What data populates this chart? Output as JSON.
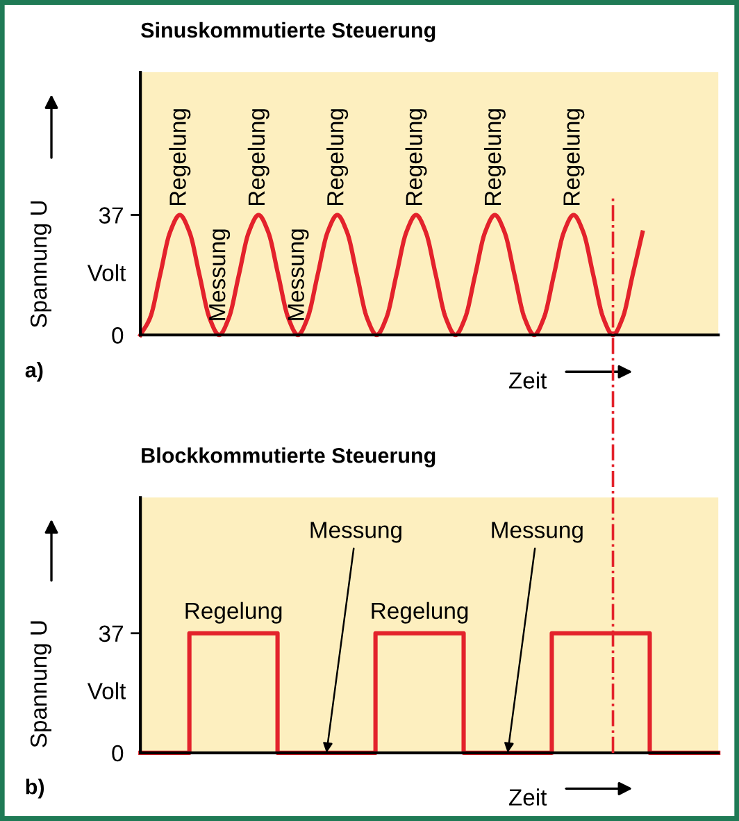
{
  "chart_data": [
    {
      "type": "line",
      "title": "Sinuskommutierte Steuerung",
      "xlabel": "Zeit",
      "ylabel": "Spannung U",
      "tick_labels": "y",
      "color": "#e3222b",
      "categories": [
        null,
        null,
        null,
        null,
        null,
        null,
        null,
        null,
        null,
        null,
        null,
        null,
        null,
        null,
        null,
        null,
        null,
        null,
        null,
        null,
        null,
        null,
        null,
        null,
        null,
        null,
        null,
        null,
        null,
        null,
        null,
        null,
        null,
        null,
        null,
        null,
        null,
        null,
        null,
        null,
        null,
        null,
        null,
        null,
        null,
        null,
        null,
        null,
        null,
        null,
        null,
        null
      ],
      "values": [
        0,
        5.4,
        18.5,
        31.6,
        37,
        31.6,
        18.5,
        5.4,
        0,
        5.4,
        18.5,
        31.6,
        37,
        31.6,
        18.5,
        5.4,
        0,
        5.4,
        18.5,
        31.6,
        37,
        31.6,
        18.5,
        5.4,
        0,
        5.4,
        18.5,
        31.6,
        37,
        31.6,
        18.5,
        5.4,
        0,
        5.4,
        18.5,
        31.6,
        37,
        31.6,
        18.5,
        5.4,
        0,
        5.4,
        18.5,
        31.6,
        37,
        31.6,
        18.5,
        5.4,
        0,
        5.4,
        18.5,
        31.6
      ],
      "ylim": [
        0,
        81
      ],
      "yticks": [
        0,
        37
      ],
      "annotations": [
        {
          "text": "Regelung",
          "y": 37
        },
        {
          "text": "Messung",
          "y": 0
        },
        {
          "text": "Regelung",
          "y": 37
        },
        {
          "text": "Messung",
          "y": 0
        },
        {
          "text": "Regelung",
          "y": 37
        },
        {
          "text": "Regelung",
          "y": 37
        },
        {
          "text": "Regelung",
          "y": 37
        },
        {
          "text": "Regelung",
          "y": 37
        },
        "Volt",
        "a)"
      ]
    },
    {
      "type": "step",
      "title": "Blockkommutierte Steuerung",
      "xlabel": "Zeit",
      "ylabel": "Spannung U",
      "tick_labels": "y",
      "color": "#e3222b",
      "categories": [
        null,
        null,
        null,
        null,
        null,
        null,
        null,
        null,
        null,
        null,
        null,
        null,
        null,
        null,
        null,
        null,
        null,
        null,
        null,
        null,
        null,
        null,
        null,
        null,
        null,
        null,
        null,
        null,
        null,
        null,
        null,
        null,
        null,
        null,
        null,
        null,
        null,
        null,
        null,
        null,
        null,
        null,
        null,
        null,
        null,
        null,
        null,
        null,
        null,
        null,
        null,
        null,
        null,
        null,
        null,
        null,
        null,
        null,
        null,
        null
      ],
      "values": [
        0,
        0,
        0,
        0,
        0,
        37,
        37,
        37,
        37,
        37,
        37,
        37,
        37,
        37,
        0,
        0,
        0,
        0,
        0,
        0,
        0,
        0,
        0,
        0,
        37,
        37,
        37,
        37,
        37,
        37,
        37,
        37,
        37,
        0,
        0,
        0,
        0,
        0,
        0,
        0,
        0,
        0,
        37,
        37,
        37,
        37,
        37,
        37,
        37,
        37,
        37,
        37,
        0,
        0,
        0,
        0,
        0,
        0,
        0,
        0
      ],
      "ylim": [
        0,
        79
      ],
      "yticks": [
        0,
        37
      ],
      "annotations": [
        {
          "text": "Regelung",
          "y": 37
        },
        "Messung",
        {
          "text": "Regelung",
          "y": 37
        },
        "Messung",
        "Volt",
        "b)"
      ]
    }
  ]
}
